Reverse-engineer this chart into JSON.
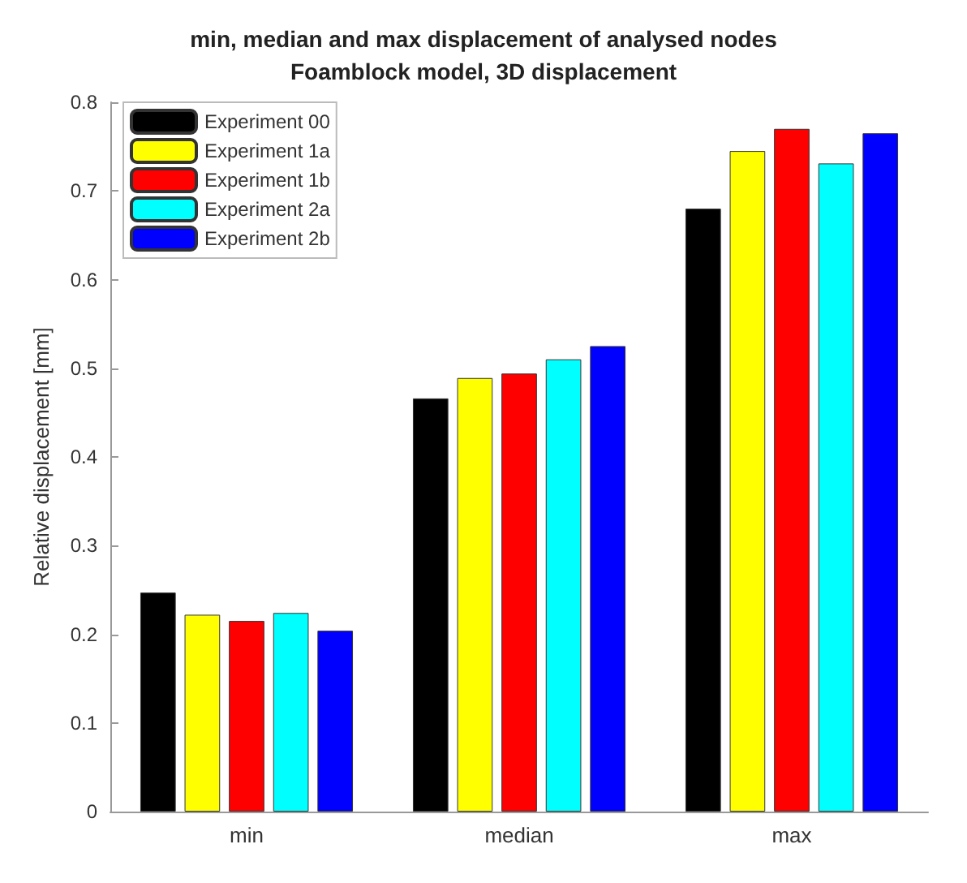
{
  "chart_data": {
    "type": "bar",
    "title": "min, median and max displacement of analysed nodes",
    "subtitle": "Foamblock model, 3D displacement",
    "ylabel": "Relative displacement [mm]",
    "categories": [
      "min",
      "median",
      "max"
    ],
    "series": [
      {
        "name": "Experiment 00",
        "color": "#000000",
        "values": [
          0.247,
          0.466,
          0.68
        ]
      },
      {
        "name": "Experiment 1a",
        "color": "#ffff00",
        "values": [
          0.222,
          0.489,
          0.745
        ]
      },
      {
        "name": "Experiment 1b",
        "color": "#ff0000",
        "values": [
          0.215,
          0.494,
          0.77
        ]
      },
      {
        "name": "Experiment 2a",
        "color": "#00ffff",
        "values": [
          0.224,
          0.51,
          0.731
        ]
      },
      {
        "name": "Experiment 2b",
        "color": "#0000ff",
        "values": [
          0.204,
          0.525,
          0.765
        ]
      }
    ],
    "ylim": [
      0,
      0.8
    ],
    "yticks": [
      0,
      0.1,
      0.2,
      0.3,
      0.4,
      0.5,
      0.6,
      0.7,
      0.8
    ],
    "grid": false,
    "legend": "top left"
  }
}
